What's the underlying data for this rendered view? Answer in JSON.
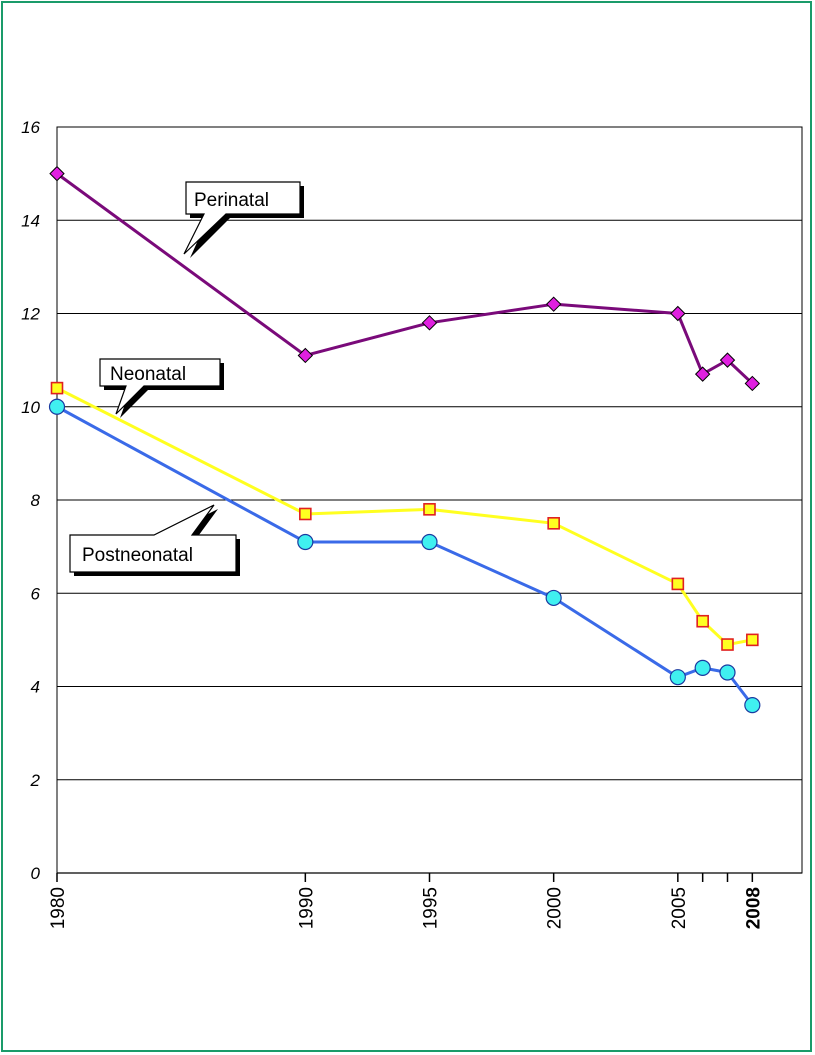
{
  "chart_data": {
    "type": "line",
    "title": "",
    "xlabel": "",
    "ylabel": "",
    "ylim": [
      0,
      16
    ],
    "y_ticks": [
      "0",
      "2",
      "4",
      "6",
      "8",
      "10",
      "12",
      "14",
      "16"
    ],
    "x_ticks": [
      "1980",
      "1990",
      "1995",
      "2000",
      "2005",
      "2008"
    ],
    "x_ticks_minor": [
      2006,
      2007,
      2008
    ],
    "x_tick_bold": "2008",
    "xlim": [
      1980,
      2010
    ],
    "grid": true,
    "series": [
      {
        "name": "Perinatal",
        "color": "#7a0a7a",
        "marker": "diamond",
        "marker_color": "#e020e0",
        "x": [
          1980,
          1990,
          1995,
          2000,
          2005,
          2006,
          2007,
          2008
        ],
        "values": [
          15.0,
          11.1,
          11.8,
          12.2,
          12.0,
          10.7,
          11.0,
          10.5
        ]
      },
      {
        "name": "Neonatal",
        "color": "#ffff20",
        "marker": "square",
        "marker_color": "#ffff20",
        "marker_edge": "#e02020",
        "x": [
          1980,
          1990,
          1995,
          2000,
          2005,
          2006,
          2007,
          2008
        ],
        "values": [
          10.4,
          7.7,
          7.8,
          7.5,
          6.2,
          5.4,
          4.9,
          5.0
        ]
      },
      {
        "name": "Postneonatal",
        "color": "#3a6ae8",
        "marker": "circle",
        "marker_color": "#40f0f0",
        "x": [
          1980,
          1990,
          1995,
          2000,
          2005,
          2006,
          2007,
          2008
        ],
        "values": [
          10.0,
          7.1,
          7.1,
          5.9,
          4.2,
          4.4,
          4.3,
          3.6
        ]
      }
    ],
    "callouts": [
      "Perinatal",
      "Neonatal",
      "Postneonatal"
    ]
  }
}
